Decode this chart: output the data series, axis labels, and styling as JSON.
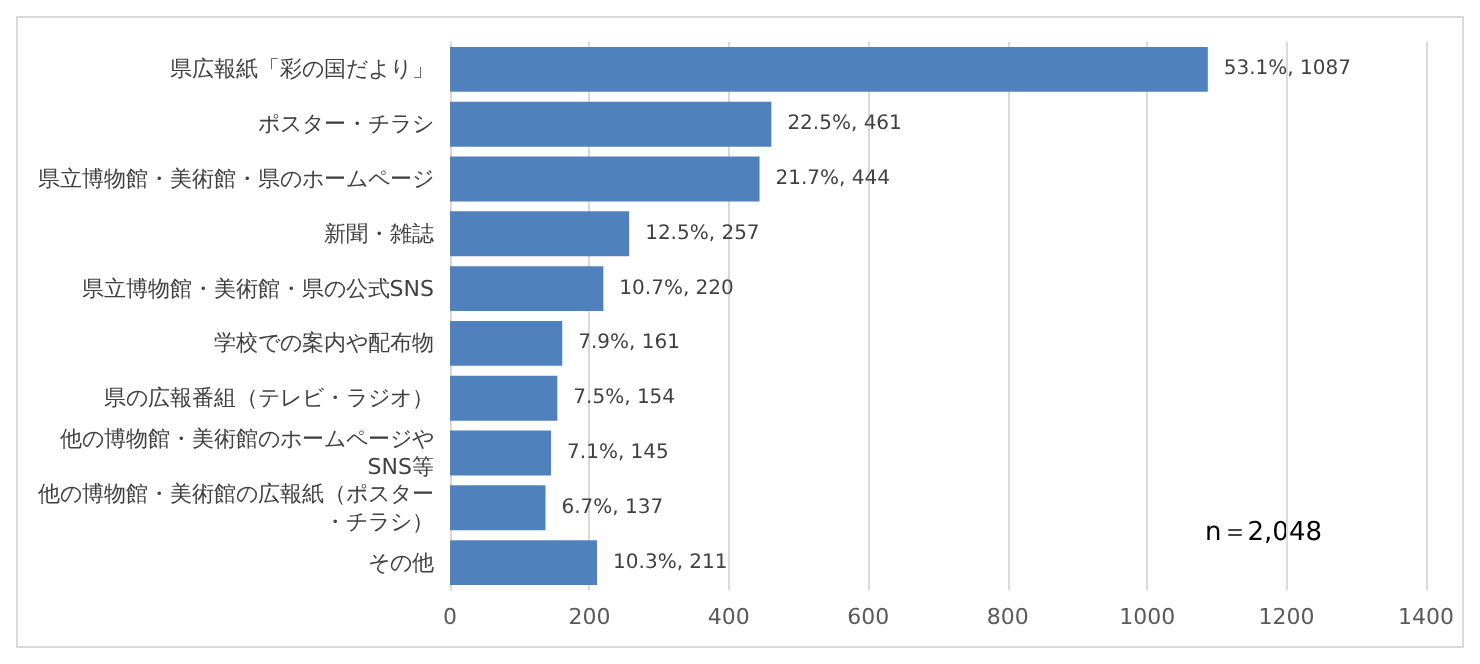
{
  "chart_data": {
    "type": "bar",
    "orientation": "horizontal",
    "categories": [
      "県広報紙「彩の国だより」",
      "ポスター・チラシ",
      "県立博物館・美術館・県のホームページ",
      "新聞・雑誌",
      "県立博物館・美術館・県の公式SNS",
      "学校での案内や配布物",
      "県の広報番組（テレビ・ラジオ）",
      "他の博物館・美術館のホームページやSNS等",
      "他の博物館・美術館の広報紙（ポスター・チラシ）",
      "その他"
    ],
    "values": [
      1087,
      461,
      444,
      257,
      220,
      161,
      154,
      145,
      137,
      211
    ],
    "value_labels": [
      "53.1%, 1087",
      "22.5%, 461",
      "21.7%, 444",
      "12.5%, 257",
      "10.7%, 220",
      "7.9%, 161",
      "7.5%, 154",
      "7.1%, 145",
      "6.7%, 137",
      "10.3%, 211"
    ],
    "color": "#4f81bd",
    "xlim": [
      0,
      1400
    ],
    "xticks": [
      0,
      200,
      400,
      600,
      800,
      1000,
      1200,
      1400
    ],
    "grid": "x",
    "annotations": [
      "n＝2,048"
    ]
  }
}
